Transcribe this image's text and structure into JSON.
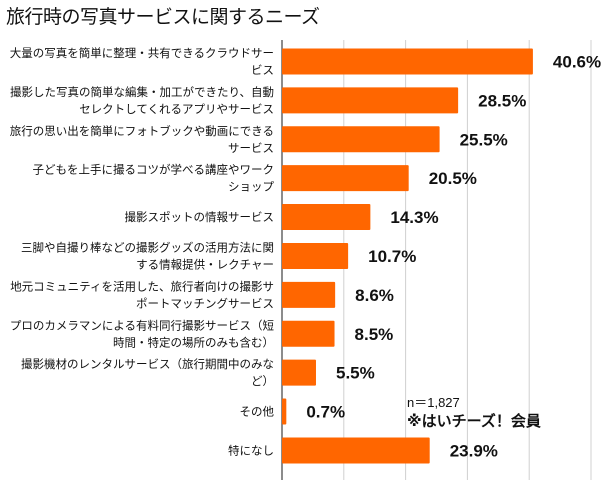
{
  "chart_data": {
    "type": "bar",
    "orientation": "horizontal",
    "title": "旅行時の写真サービスに関するニーズ",
    "categories": [
      [
        "大量の写真を簡単に整理・共有できるクラウドサー",
        "ビス"
      ],
      [
        "撮影した写真の簡単な編集・加工ができたり、自動",
        "セレクトしてくれるアプリやサービス"
      ],
      [
        "旅行の思い出を簡単にフォトブックや動画にできる",
        "サービス"
      ],
      [
        "子どもを上手に撮るコツが学べる講座やワーク",
        "ショップ"
      ],
      [
        "撮影スポットの情報サービス"
      ],
      [
        "三脚や自撮り棒などの撮影グッズの活用方法に関",
        "する情報提供・レクチャー"
      ],
      [
        "地元コミュニティを活用した、旅行者向けの撮影サ",
        "ポートマッチングサービス"
      ],
      [
        "プロのカメラマンによる有料同行撮影サービス（短",
        "時間・特定の場所のみも含む）"
      ],
      [
        "撮影機材のレンタルサービス（旅行期間中のみな",
        "ど）"
      ],
      [
        "その他"
      ],
      [
        "特になし"
      ]
    ],
    "values": [
      40.6,
      28.5,
      25.5,
      20.5,
      14.3,
      10.7,
      8.6,
      8.5,
      5.5,
      0.7,
      23.9
    ],
    "data_labels": [
      "40.6%",
      "28.5%",
      "25.5%",
      "20.5%",
      "14.3%",
      "10.7%",
      "8.6%",
      "8.5%",
      "5.5%",
      "0.7%",
      "23.9%"
    ],
    "unit": "%",
    "xlim": [
      0,
      50
    ],
    "grid": true,
    "bar_color": "#FF6600",
    "annotations": [
      "n＝1,827",
      "※はいチーズ！会員"
    ]
  }
}
